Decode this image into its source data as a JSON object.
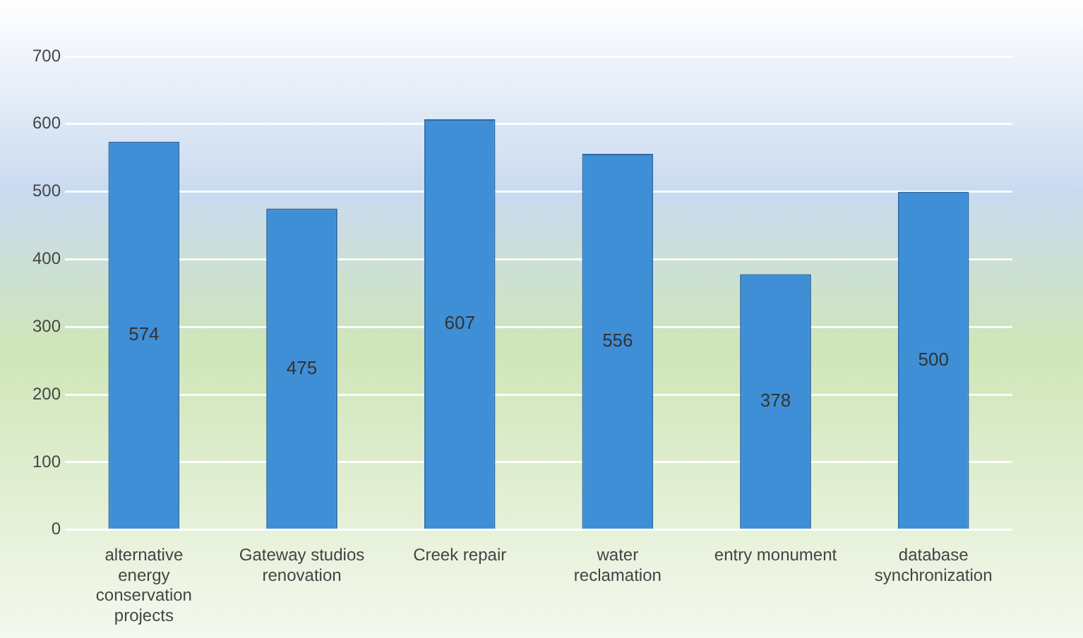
{
  "chart_data": {
    "type": "bar",
    "categories": [
      "alternative energy conservation projects",
      "Gateway studios renovation",
      "Creek repair",
      "water reclamation",
      "entry monument",
      "database synchronization"
    ],
    "values": [
      574,
      475,
      607,
      556,
      378,
      500
    ],
    "color": "#3f8fd6",
    "ylim": [
      0,
      700
    ],
    "yticks": [
      0,
      100,
      200,
      300,
      400,
      500,
      600,
      700
    ],
    "grid": "y",
    "data_labels": true,
    "legend": false
  }
}
